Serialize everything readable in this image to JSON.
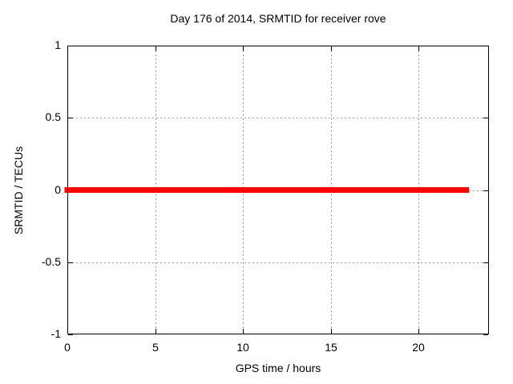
{
  "chart_data": {
    "type": "line",
    "title": "Day 176 of 2014, SRMTID for receiver rove",
    "xlabel": "GPS time / hours",
    "ylabel": "SRMTID / TECUs",
    "xlim": [
      0,
      24
    ],
    "ylim": [
      -1,
      1
    ],
    "xticks": [
      {
        "value": 0,
        "label": "0"
      },
      {
        "value": 5,
        "label": "5"
      },
      {
        "value": 10,
        "label": "10"
      },
      {
        "value": 15,
        "label": "15"
      },
      {
        "value": 20,
        "label": "20"
      }
    ],
    "yticks": [
      {
        "value": -1,
        "label": "-1"
      },
      {
        "value": -0.5,
        "label": "-0.5"
      },
      {
        "value": 0,
        "label": "0"
      },
      {
        "value": 0.5,
        "label": "0.5"
      },
      {
        "value": 1,
        "label": "1"
      }
    ],
    "grid": true,
    "grid_color": "#999999",
    "border_color": "#000000",
    "background_color": "#ffffff",
    "legend": "none",
    "series": [
      {
        "name": "SRMTID",
        "color": "#ff0000",
        "linewidth": 7,
        "points": [
          [
            0,
            0
          ],
          [
            22.7,
            0
          ]
        ]
      }
    ]
  }
}
